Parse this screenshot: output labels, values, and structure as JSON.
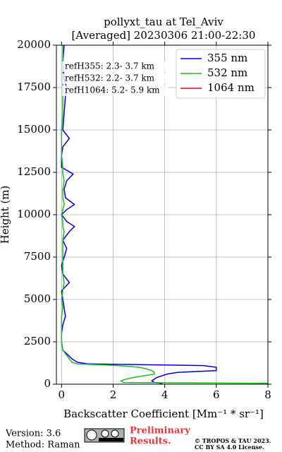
{
  "chart_data": {
    "type": "line",
    "title": "pollyxt_tau at Tel_Aviv",
    "subtitle": "[Averaged] 20230306 21:00-22:30",
    "x_label": "Backscatter Coefficient [Mm⁻¹ * sr⁻¹]",
    "y_label": "Height (m)",
    "annotations": [
      "refH355:  2.3- 3.7 km",
      "refH532:  2.2- 3.7 km",
      "refH1064:  5.2- 5.9 km"
    ],
    "y": [
      0,
      50,
      100,
      200,
      300,
      400,
      500,
      600,
      700,
      800,
      900,
      1000,
      1100,
      1200,
      1300,
      1500,
      1800,
      2000,
      2500,
      3000,
      3500,
      4000,
      4500,
      5000,
      5500,
      6000,
      6500,
      7000,
      7500,
      8000,
      8500,
      9000,
      9300,
      9600,
      10000,
      10300,
      10600,
      11000,
      11500,
      12000,
      12400,
      12800,
      13500,
      14000,
      14500,
      15000,
      16000,
      17000,
      17500,
      18000,
      19000,
      20000
    ],
    "series": [
      {
        "name": "355 nm",
        "color": "#0000e0",
        "values": [
          3.8,
          3.9,
          3.6,
          3.5,
          3.6,
          3.7,
          3.9,
          4.1,
          4.5,
          6.0,
          6.0,
          6.0,
          5.5,
          1.0,
          0.6,
          0.4,
          0.2,
          0.05,
          0.0,
          0.0,
          0.05,
          0.15,
          0.1,
          0.05,
          0.0,
          0.3,
          0.05,
          0.0,
          0.1,
          0.2,
          0.05,
          0.3,
          0.5,
          0.2,
          0.0,
          0.2,
          0.5,
          0.15,
          0.1,
          0.2,
          0.45,
          0.0,
          0.0,
          0.05,
          0.3,
          0.05,
          0.1,
          0.15,
          0.2,
          0.1,
          0.05,
          0.1
        ]
      },
      {
        "name": "532 nm",
        "color": "#1cbf1c",
        "values": [
          8.0,
          8.0,
          2.4,
          2.3,
          2.5,
          2.8,
          3.2,
          3.6,
          3.6,
          3.5,
          3.3,
          3.0,
          2.2,
          0.6,
          0.4,
          0.3,
          0.15,
          0.05,
          0.0,
          0.0,
          0.0,
          0.0,
          0.05,
          0.0,
          0.05,
          0.1,
          0.05,
          0.05,
          0.05,
          0.05,
          0.05,
          0.1,
          0.05,
          0.05,
          0.0,
          0.05,
          0.1,
          0.05,
          0.05,
          0.1,
          0.05,
          0.05,
          0.0,
          0.0,
          0.0,
          0.0,
          0.05,
          0.05,
          0.05,
          0.05,
          0.05,
          0.05
        ]
      },
      {
        "name": "1064 nm",
        "color": "#e01010",
        "values": [
          null,
          null,
          null,
          null,
          null,
          null,
          null,
          null,
          null,
          null,
          null,
          null,
          null,
          null,
          null,
          null,
          null,
          null,
          null,
          null,
          null,
          null,
          null,
          null,
          null,
          null,
          null,
          null,
          null,
          null,
          null,
          null,
          null,
          null,
          null,
          null,
          null,
          null,
          null,
          null,
          null,
          null,
          null,
          null,
          null,
          null,
          null,
          null,
          null,
          null,
          null,
          null
        ]
      }
    ],
    "xlim": [
      -0.2,
      8
    ],
    "xticks": [
      0,
      2,
      4,
      6,
      8
    ],
    "ylim": [
      0,
      20000
    ],
    "yticks": [
      0,
      2500,
      5000,
      7500,
      10000,
      12500,
      15000,
      17500,
      20000
    ],
    "grid": true,
    "legend": "upper right"
  },
  "footer": {
    "version": "Version: 3.6",
    "method": "Method: Raman",
    "status": [
      "Preliminary",
      "Results."
    ],
    "copyright": [
      "© TROPOS & TAU 2023.",
      "CC BY SA 4.0 License."
    ]
  }
}
